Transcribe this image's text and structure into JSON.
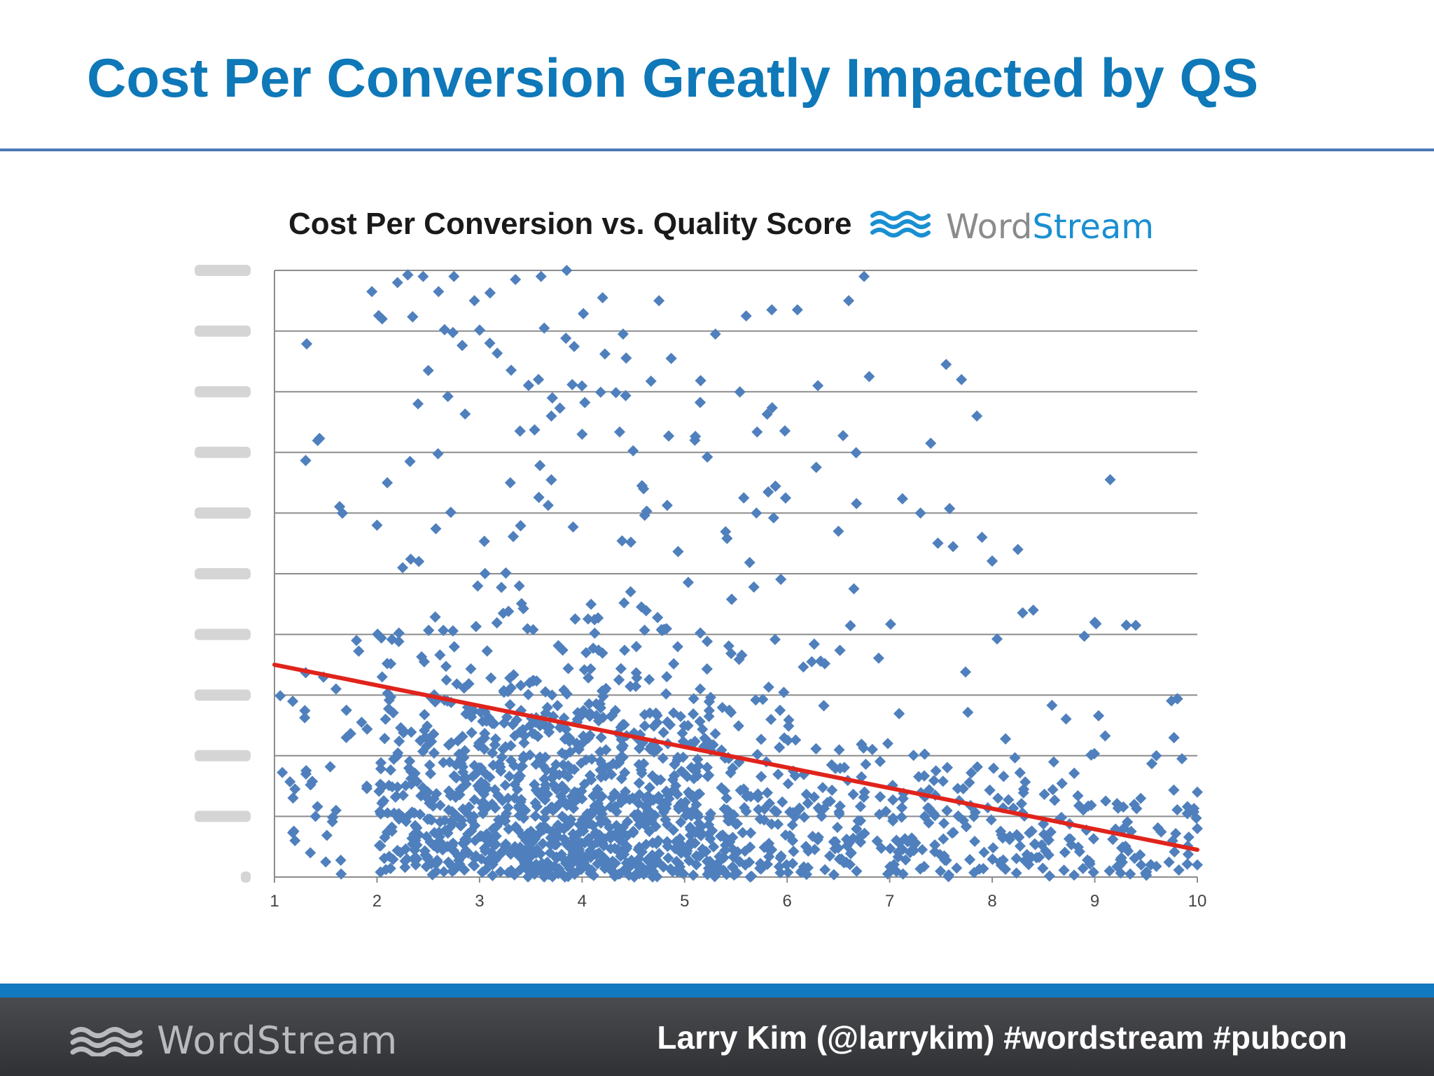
{
  "slide": {
    "title": "Cost Per Conversion Greatly Impacted by QS",
    "footer_logo_text": "WordStream",
    "footer_credit": "Larry Kim (@larrykim) #wordstream #pubcon"
  },
  "colors": {
    "title": "#0e78b8",
    "rule": "#4a78b6",
    "points": "#4f80bd",
    "trendline": "#e0241c",
    "footer_accent": "#1079bf",
    "logo_wave": "#1a8fd1"
  },
  "icons": {
    "chart_logo": "wordstream-wave-icon",
    "footer_logo": "wordstream-wave-icon"
  },
  "chart_data": {
    "type": "scatter",
    "title": "Cost Per Conversion vs. Quality Score",
    "logo_text": {
      "word": "Word",
      "stream": "Stream"
    },
    "xlabel": "",
    "ylabel": "",
    "xlim": [
      1,
      10
    ],
    "x_ticks": [
      1,
      2,
      3,
      4,
      5,
      6,
      7,
      8,
      9,
      10
    ],
    "ylim": [
      0,
      1000
    ],
    "y_gridlines": [
      0,
      100,
      200,
      300,
      400,
      500,
      600,
      700,
      800,
      900,
      1000
    ],
    "y_tick_labels_legible": false,
    "grid": true,
    "legend": "none",
    "series": [
      {
        "marker": "diamond",
        "description_points": [
          [
            1.2,
            145
          ],
          [
            1.2,
            60
          ],
          [
            1.35,
            40
          ],
          [
            1.4,
            100
          ],
          [
            1.5,
            25
          ],
          [
            1.6,
            310
          ],
          [
            1.6,
            110
          ],
          [
            1.65,
            5
          ],
          [
            1.7,
            230
          ],
          [
            1.8,
            390
          ],
          [
            1.85,
            255
          ],
          [
            1.9,
            150
          ],
          [
            1.95,
            965
          ],
          [
            2.0,
            580
          ],
          [
            2.05,
            920
          ],
          [
            2.05,
            330
          ],
          [
            2.1,
            650
          ],
          [
            2.2,
            980
          ],
          [
            2.25,
            510
          ],
          [
            2.4,
            780
          ],
          [
            2.45,
            990
          ],
          [
            2.5,
            835
          ],
          [
            2.6,
            965
          ],
          [
            2.75,
            990
          ],
          [
            2.95,
            950
          ],
          [
            3.1,
            880
          ],
          [
            3.35,
            985
          ],
          [
            3.6,
            990
          ],
          [
            3.85,
            1000
          ],
          [
            4.2,
            955
          ],
          [
            4.4,
            895
          ],
          [
            4.75,
            950
          ],
          [
            5.3,
            895
          ],
          [
            5.6,
            925
          ],
          [
            5.85,
            935
          ],
          [
            6.1,
            935
          ],
          [
            6.3,
            810
          ],
          [
            6.6,
            950
          ],
          [
            6.75,
            990
          ],
          [
            6.8,
            825
          ],
          [
            7.4,
            715
          ],
          [
            7.55,
            845
          ],
          [
            7.7,
            820
          ],
          [
            7.85,
            760
          ],
          [
            7.9,
            560
          ],
          [
            8.25,
            540
          ],
          [
            8.4,
            440
          ],
          [
            9.15,
            655
          ],
          [
            9.0,
            420
          ],
          [
            9.4,
            415
          ],
          [
            9.6,
            200
          ],
          [
            9.85,
            195
          ],
          [
            10.0,
            140
          ],
          [
            10.0,
            80
          ],
          [
            10.0,
            20
          ],
          [
            5.1,
            720
          ],
          [
            4.0,
            730
          ],
          [
            3.7,
            760
          ],
          [
            3.3,
            650
          ],
          [
            4.6,
            640
          ],
          [
            5.7,
            600
          ],
          [
            6.5,
            570
          ],
          [
            7.3,
            600
          ]
        ]
      }
    ],
    "trendline": {
      "color": "#e0241c",
      "points": [
        [
          1,
          350
        ],
        [
          10,
          45
        ]
      ]
    }
  }
}
